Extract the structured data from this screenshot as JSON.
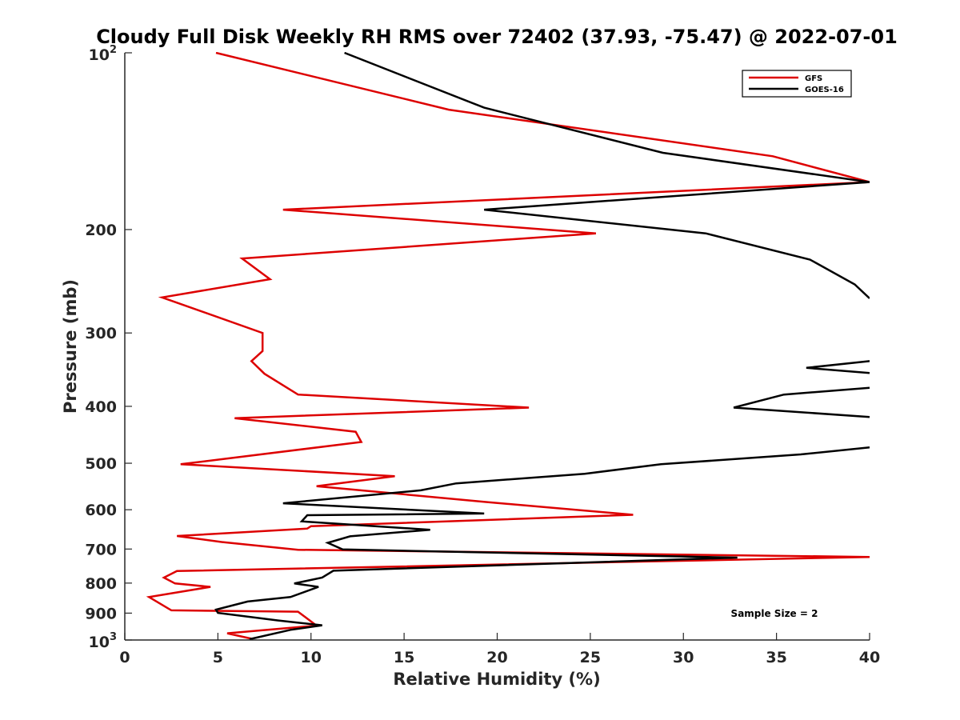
{
  "chart_data": {
    "type": "line",
    "title": "Cloudy Full Disk Weekly RH RMS over 72402 (37.93, -75.47) @ 2022-07-01",
    "xlabel": "Relative Humidity (%)",
    "ylabel": "Pressure (mb)",
    "xlim": [
      0,
      40
    ],
    "ylim": [
      100,
      1000
    ],
    "y_scale": "log",
    "y_reversed": true,
    "grid": false,
    "legend_position": "top-right",
    "x_ticks": [
      "0",
      "5",
      "10",
      "15",
      "20",
      "25",
      "30",
      "35",
      "40"
    ],
    "y_ticks": [
      {
        "value": 100,
        "base": "10",
        "exp": "2"
      },
      {
        "value": 200,
        "label": "200"
      },
      {
        "value": 300,
        "label": "300"
      },
      {
        "value": 400,
        "label": "400"
      },
      {
        "value": 500,
        "label": "500"
      },
      {
        "value": 600,
        "label": "600"
      },
      {
        "value": 700,
        "label": "700"
      },
      {
        "value": 800,
        "label": "800"
      },
      {
        "value": 900,
        "label": "900"
      },
      {
        "value": 1000,
        "base": "10",
        "exp": "3"
      }
    ],
    "annotation": "Sample Size = 2",
    "series": [
      {
        "name": "GFS",
        "color": "#dd0000",
        "points": [
          [
            4.9,
            100
          ],
          [
            17.4,
            125
          ],
          [
            34.8,
            150
          ],
          [
            40.0,
            166
          ],
          [
            8.5,
            185
          ],
          [
            25.3,
            203
          ],
          [
            6.3,
            224
          ],
          [
            7.8,
            243
          ],
          [
            2.0,
            261
          ],
          [
            7.4,
            300
          ],
          [
            7.4,
            322
          ],
          [
            6.8,
            335
          ],
          [
            7.5,
            352
          ],
          [
            9.3,
            382
          ],
          [
            21.7,
            402
          ],
          [
            5.9,
            419
          ],
          [
            12.4,
            442
          ],
          [
            12.7,
            460
          ],
          [
            3.0,
            502
          ],
          [
            14.5,
            526
          ],
          [
            10.3,
            547
          ],
          [
            19.4,
            582
          ],
          [
            27.3,
            612
          ],
          [
            10.0,
            640
          ],
          [
            9.8,
            646
          ],
          [
            2.8,
            665
          ],
          [
            5.2,
            681
          ],
          [
            9.3,
            702
          ],
          [
            40.0,
            722
          ],
          [
            2.8,
            763
          ],
          [
            2.1,
            783
          ],
          [
            2.7,
            801
          ],
          [
            4.6,
            812
          ],
          [
            1.3,
            845
          ],
          [
            2.5,
            890
          ],
          [
            9.3,
            895
          ],
          [
            10.3,
            945
          ],
          [
            5.5,
            974
          ],
          [
            6.8,
            995
          ]
        ]
      },
      {
        "name": "GOES-16",
        "color": "#000000",
        "points": [
          [
            11.8,
            100
          ],
          [
            19.3,
            124
          ],
          [
            28.9,
            148
          ],
          [
            40.0,
            166
          ],
          [
            19.3,
            185
          ],
          [
            31.2,
            203
          ],
          [
            36.8,
            225
          ],
          [
            39.2,
            248
          ],
          [
            40.0,
            262
          ],
          null,
          [
            40.0,
            335
          ],
          [
            36.6,
            344
          ],
          [
            40.0,
            351
          ],
          null,
          [
            40.0,
            372
          ],
          [
            35.4,
            382
          ],
          [
            32.7,
            402
          ],
          [
            40.0,
            417
          ],
          null,
          [
            40.0,
            470
          ],
          [
            36.3,
            483
          ],
          [
            28.8,
            502
          ],
          [
            24.7,
            521
          ],
          [
            17.8,
            541
          ],
          [
            15.9,
            556
          ],
          [
            8.5,
            585
          ],
          [
            19.3,
            609
          ],
          [
            9.8,
            613
          ],
          [
            9.5,
            628
          ],
          [
            16.4,
            649
          ],
          [
            12.1,
            666
          ],
          [
            10.9,
            683
          ],
          [
            11.7,
            701
          ],
          [
            32.9,
            724
          ],
          [
            11.2,
            762
          ],
          [
            10.6,
            783
          ],
          [
            9.1,
            801
          ],
          [
            10.4,
            812
          ],
          [
            8.9,
            845
          ],
          [
            6.6,
            860
          ],
          [
            4.9,
            888
          ],
          [
            5.0,
            899
          ],
          [
            8.2,
            926
          ],
          [
            10.6,
            944
          ],
          [
            8.9,
            961
          ],
          [
            6.7,
            997
          ]
        ]
      }
    ]
  }
}
